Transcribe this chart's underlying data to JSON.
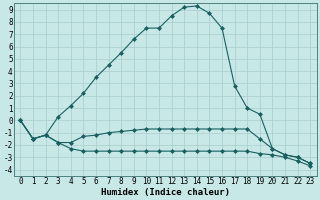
{
  "xlabel": "Humidex (Indice chaleur)",
  "bg_color": "#c8e8e8",
  "grid_color": "#a8cece",
  "line_color": "#1a6060",
  "xlim": [
    -0.5,
    23.5
  ],
  "ylim": [
    -4.5,
    9.5
  ],
  "xticks": [
    0,
    1,
    2,
    3,
    4,
    5,
    6,
    7,
    8,
    9,
    10,
    11,
    12,
    13,
    14,
    15,
    16,
    17,
    18,
    19,
    20,
    21,
    22,
    23
  ],
  "yticks": [
    -4,
    -3,
    -2,
    -1,
    0,
    1,
    2,
    3,
    4,
    5,
    6,
    7,
    8,
    9
  ],
  "line1_x": [
    0,
    1,
    2,
    3,
    4,
    5,
    6,
    7,
    8,
    9,
    10,
    11,
    12,
    13,
    14,
    15,
    16,
    17,
    18,
    19,
    20,
    21,
    22,
    23
  ],
  "line1_y": [
    0,
    -1.5,
    -1.2,
    0.3,
    1.2,
    2.2,
    3.5,
    4.5,
    5.5,
    6.6,
    7.5,
    7.5,
    8.5,
    9.2,
    9.3,
    8.7,
    7.5,
    2.8,
    1.0,
    0.5,
    -2.3,
    -2.8,
    -3.0,
    -3.5
  ],
  "line2_x": [
    0,
    1,
    2,
    3,
    4,
    5,
    6,
    7,
    8,
    9,
    10,
    11,
    12,
    13,
    14,
    15,
    16,
    17,
    18,
    19,
    20,
    21,
    22,
    23
  ],
  "line2_y": [
    0,
    -1.5,
    -1.2,
    -1.8,
    -1.8,
    -1.3,
    -1.2,
    -1.0,
    -0.9,
    -0.8,
    -0.7,
    -0.7,
    -0.7,
    -0.7,
    -0.7,
    -0.7,
    -0.7,
    -0.7,
    -0.7,
    -1.5,
    -2.3,
    -2.8,
    -3.0,
    -3.5
  ],
  "line3_x": [
    0,
    1,
    2,
    3,
    4,
    5,
    6,
    7,
    8,
    9,
    10,
    11,
    12,
    13,
    14,
    15,
    16,
    17,
    18,
    19,
    20,
    21,
    22,
    23
  ],
  "line3_y": [
    0,
    -1.5,
    -1.2,
    -1.8,
    -2.3,
    -2.5,
    -2.5,
    -2.5,
    -2.5,
    -2.5,
    -2.5,
    -2.5,
    -2.5,
    -2.5,
    -2.5,
    -2.5,
    -2.5,
    -2.5,
    -2.5,
    -2.7,
    -2.8,
    -3.0,
    -3.3,
    -3.7
  ],
  "font_family": "monospace",
  "xlabel_fontsize": 6.5,
  "tick_fontsize": 5.5
}
